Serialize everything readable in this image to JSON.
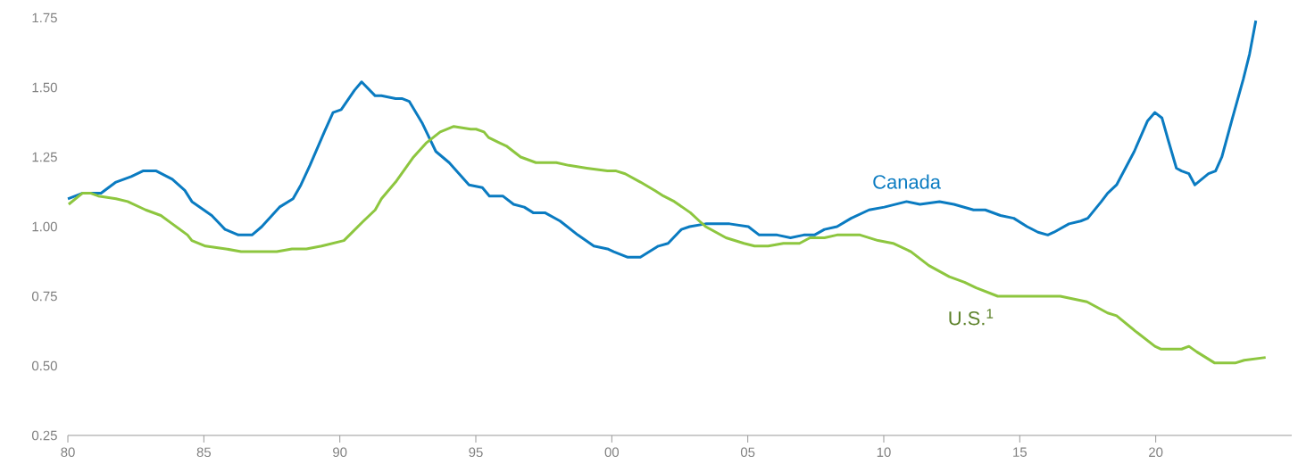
{
  "chart_data": {
    "type": "line",
    "xlim": [
      1980,
      2025
    ],
    "ylim": [
      0.25,
      1.75
    ],
    "xticks": [
      {
        "value": 1980,
        "label": "80"
      },
      {
        "value": 1985,
        "label": "85"
      },
      {
        "value": 1990,
        "label": "90"
      },
      {
        "value": 1995,
        "label": "95"
      },
      {
        "value": 2000,
        "label": "00"
      },
      {
        "value": 2005,
        "label": "05"
      },
      {
        "value": 2010,
        "label": "10"
      },
      {
        "value": 2015,
        "label": "15"
      },
      {
        "value": 2020,
        "label": "20"
      }
    ],
    "yticks": [
      {
        "value": 0.25,
        "label": "0.25"
      },
      {
        "value": 0.5,
        "label": "0.50"
      },
      {
        "value": 0.75,
        "label": "0.75"
      },
      {
        "value": 1.0,
        "label": "1.00"
      },
      {
        "value": 1.25,
        "label": "1.25"
      },
      {
        "value": 1.5,
        "label": "1.50"
      },
      {
        "value": 1.75,
        "label": "1.75"
      }
    ],
    "grid": false,
    "line_style": "solid",
    "series": [
      {
        "name": "Canada",
        "color": "#0a7bc1",
        "x": [
          1980.0,
          1980.53,
          1981.22,
          1981.77,
          1982.33,
          1982.76,
          1983.25,
          1983.84,
          1984.3,
          1984.56,
          1985.29,
          1985.78,
          1986.27,
          1986.77,
          1987.13,
          1987.78,
          1988.28,
          1988.57,
          1988.9,
          1989.43,
          1989.75,
          1990.05,
          1990.54,
          1990.8,
          1991.3,
          1991.53,
          1992.05,
          1992.28,
          1992.55,
          1993.04,
          1993.53,
          1994.02,
          1994.75,
          1995.24,
          1995.5,
          1995.99,
          1996.39,
          1996.78,
          1997.11,
          1997.54,
          1998.1,
          1998.75,
          1999.34,
          1999.84,
          2000.07,
          2000.59,
          2001.05,
          2001.71,
          2002.07,
          2002.56,
          2002.86,
          2003.45,
          2004.33,
          2005.02,
          2005.42,
          2006.08,
          2006.57,
          2007.06,
          2007.45,
          2007.82,
          2008.28,
          2008.8,
          2009.46,
          2010.02,
          2010.84,
          2011.33,
          2012.05,
          2012.58,
          2013.3,
          2013.73,
          2014.29,
          2014.78,
          2015.27,
          2015.67,
          2016.03,
          2016.26,
          2016.81,
          2017.24,
          2017.5,
          2018.0,
          2018.23,
          2018.56,
          2019.21,
          2019.7,
          2019.97,
          2020.23,
          2020.46,
          2020.76,
          2020.95,
          2021.22,
          2021.44,
          2021.94,
          2022.2,
          2022.43,
          2022.82,
          2023.22,
          2023.45,
          2023.68
        ],
        "values": [
          1.1,
          1.12,
          1.12,
          1.16,
          1.18,
          1.2,
          1.2,
          1.17,
          1.13,
          1.09,
          1.04,
          0.99,
          0.97,
          0.97,
          1.0,
          1.07,
          1.1,
          1.15,
          1.22,
          1.34,
          1.41,
          1.42,
          1.49,
          1.52,
          1.47,
          1.47,
          1.46,
          1.46,
          1.45,
          1.37,
          1.27,
          1.23,
          1.15,
          1.14,
          1.11,
          1.11,
          1.08,
          1.07,
          1.05,
          1.05,
          1.02,
          0.97,
          0.93,
          0.92,
          0.91,
          0.89,
          0.89,
          0.93,
          0.94,
          0.99,
          1.0,
          1.01,
          1.01,
          1.0,
          0.97,
          0.97,
          0.96,
          0.97,
          0.97,
          0.99,
          1.0,
          1.03,
          1.06,
          1.07,
          1.09,
          1.08,
          1.09,
          1.08,
          1.06,
          1.06,
          1.04,
          1.03,
          1.0,
          0.98,
          0.97,
          0.98,
          1.01,
          1.02,
          1.03,
          1.09,
          1.12,
          1.15,
          1.27,
          1.38,
          1.41,
          1.39,
          1.31,
          1.21,
          1.2,
          1.19,
          1.15,
          1.19,
          1.2,
          1.25,
          1.39,
          1.53,
          1.62,
          1.74
        ]
      },
      {
        "name": "U.S.$^{1}$",
        "color": "#8dc63f",
        "x": [
          1980.03,
          1980.53,
          1980.85,
          1981.12,
          1981.77,
          1982.2,
          1982.86,
          1983.42,
          1983.84,
          1984.4,
          1984.56,
          1985.06,
          1985.81,
          1986.37,
          1987.13,
          1987.68,
          1988.24,
          1988.77,
          1989.33,
          1990.15,
          1990.87,
          1991.3,
          1991.53,
          1992.05,
          1992.71,
          1993.17,
          1993.69,
          1994.19,
          1994.81,
          1995.01,
          1995.3,
          1995.47,
          1995.89,
          1996.12,
          1996.65,
          1997.21,
          1997.96,
          1998.42,
          1999.08,
          1999.84,
          2000.16,
          2000.49,
          2001.05,
          2001.58,
          2001.9,
          2002.3,
          2002.89,
          2003.22,
          2003.45,
          2004.2,
          2004.86,
          2005.25,
          2005.75,
          2006.31,
          2006.9,
          2007.29,
          2007.82,
          2008.28,
          2009.13,
          2009.79,
          2010.34,
          2011.0,
          2011.66,
          2012.41,
          2012.97,
          2013.4,
          2014.19,
          2014.84,
          2015.93,
          2016.49,
          2017.47,
          2018.23,
          2018.56,
          2019.31,
          2019.97,
          2020.2,
          2020.69,
          2020.95,
          2021.22,
          2021.51,
          2022.17,
          2022.92,
          2023.25,
          2024.04
        ],
        "values": [
          1.08,
          1.12,
          1.12,
          1.11,
          1.1,
          1.09,
          1.06,
          1.04,
          1.01,
          0.97,
          0.95,
          0.93,
          0.92,
          0.91,
          0.91,
          0.91,
          0.92,
          0.92,
          0.93,
          0.95,
          1.02,
          1.06,
          1.1,
          1.16,
          1.25,
          1.3,
          1.34,
          1.36,
          1.35,
          1.35,
          1.34,
          1.32,
          1.3,
          1.29,
          1.25,
          1.23,
          1.23,
          1.22,
          1.21,
          1.2,
          1.2,
          1.19,
          1.16,
          1.13,
          1.11,
          1.09,
          1.05,
          1.02,
          1.0,
          0.96,
          0.94,
          0.93,
          0.93,
          0.94,
          0.94,
          0.96,
          0.96,
          0.97,
          0.97,
          0.95,
          0.94,
          0.91,
          0.86,
          0.82,
          0.8,
          0.78,
          0.75,
          0.75,
          0.75,
          0.75,
          0.73,
          0.69,
          0.68,
          0.62,
          0.57,
          0.56,
          0.56,
          0.56,
          0.57,
          0.55,
          0.51,
          0.51,
          0.52,
          0.53
        ]
      }
    ]
  }
}
